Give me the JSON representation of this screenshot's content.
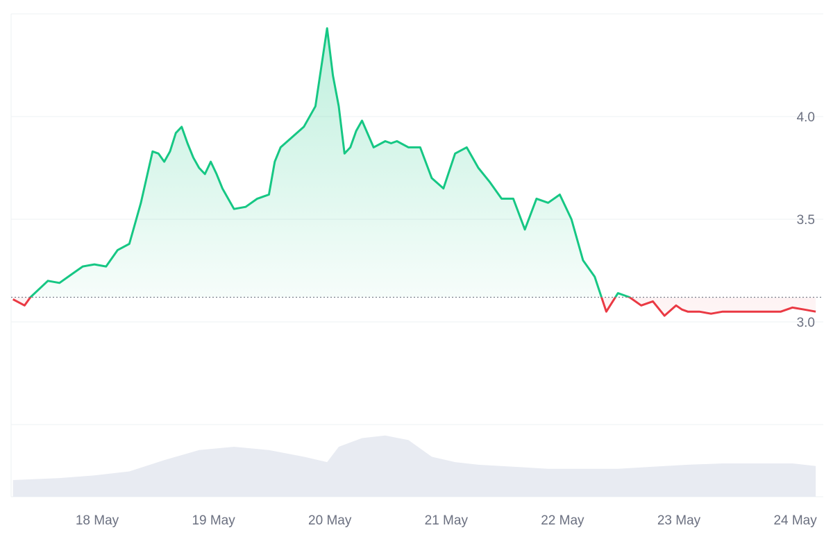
{
  "chart_data": {
    "type": "area",
    "baseline": 3.12,
    "ylim": [
      2.5,
      4.5
    ],
    "y_ticks": [
      {
        "value": 3.0,
        "label": "3.0"
      },
      {
        "value": 3.5,
        "label": "3.5"
      },
      {
        "value": 4.0,
        "label": "4.0"
      }
    ],
    "x_ticks": [
      "18 May",
      "19 May",
      "20 May",
      "21 May",
      "22 May",
      "23 May",
      "24 May"
    ],
    "x_range_days": [
      -0.7,
      6.2
    ],
    "grid": true,
    "colors": {
      "up_line": "#16c784",
      "down_line": "#ea3943",
      "up_fill": "#16c784",
      "down_fill": "#ea3943",
      "volume": "#e8ebf2",
      "grid": "#eef0f3",
      "baseline": "#7a7f8c"
    },
    "price_series": {
      "x_days": [
        -0.7,
        -0.6,
        -0.55,
        -0.4,
        -0.3,
        -0.2,
        -0.1,
        0.0,
        0.1,
        0.2,
        0.3,
        0.4,
        0.5,
        0.55,
        0.6,
        0.65,
        0.7,
        0.75,
        0.8,
        0.85,
        0.9,
        0.95,
        1.0,
        1.05,
        1.1,
        1.2,
        1.3,
        1.4,
        1.5,
        1.55,
        1.6,
        1.7,
        1.8,
        1.9,
        2.0,
        2.05,
        2.1,
        2.15,
        2.2,
        2.25,
        2.3,
        2.4,
        2.5,
        2.55,
        2.6,
        2.7,
        2.8,
        2.9,
        3.0,
        3.1,
        3.2,
        3.3,
        3.4,
        3.5,
        3.6,
        3.7,
        3.8,
        3.9,
        4.0,
        4.1,
        4.2,
        4.3,
        4.4,
        4.5,
        4.55,
        4.6,
        4.7,
        4.8,
        4.9,
        5.0,
        5.05,
        5.1,
        5.2,
        5.3,
        5.4,
        5.5,
        5.6,
        5.7,
        5.8,
        5.9,
        6.0,
        6.1,
        6.2
      ],
      "values": [
        3.11,
        3.08,
        3.12,
        3.2,
        3.19,
        3.23,
        3.27,
        3.28,
        3.27,
        3.35,
        3.38,
        3.58,
        3.83,
        3.82,
        3.78,
        3.83,
        3.92,
        3.95,
        3.87,
        3.8,
        3.75,
        3.72,
        3.78,
        3.72,
        3.65,
        3.55,
        3.56,
        3.6,
        3.62,
        3.78,
        3.85,
        3.9,
        3.95,
        4.05,
        4.43,
        4.2,
        4.05,
        3.82,
        3.85,
        3.93,
        3.98,
        3.85,
        3.88,
        3.87,
        3.88,
        3.85,
        3.85,
        3.7,
        3.65,
        3.82,
        3.85,
        3.75,
        3.68,
        3.6,
        3.6,
        3.45,
        3.6,
        3.58,
        3.62,
        3.5,
        3.3,
        3.22,
        3.05,
        3.14,
        3.13,
        3.12,
        3.08,
        3.1,
        3.03,
        3.08,
        3.06,
        3.05,
        3.05,
        3.04,
        3.05,
        3.05,
        3.05,
        3.05,
        3.05,
        3.05,
        3.07,
        3.06,
        3.05
      ]
    },
    "volume_series": {
      "x_days": [
        -0.7,
        -0.3,
        0.0,
        0.3,
        0.6,
        0.9,
        1.2,
        1.5,
        1.8,
        2.0,
        2.1,
        2.3,
        2.5,
        2.7,
        2.9,
        3.1,
        3.3,
        3.6,
        3.9,
        4.2,
        4.5,
        4.8,
        5.1,
        5.4,
        5.7,
        6.0,
        6.2
      ],
      "values": [
        0.25,
        0.28,
        0.32,
        0.38,
        0.55,
        0.7,
        0.75,
        0.7,
        0.6,
        0.52,
        0.75,
        0.88,
        0.92,
        0.85,
        0.6,
        0.52,
        0.48,
        0.45,
        0.42,
        0.42,
        0.42,
        0.45,
        0.48,
        0.5,
        0.5,
        0.5,
        0.46
      ]
    }
  }
}
